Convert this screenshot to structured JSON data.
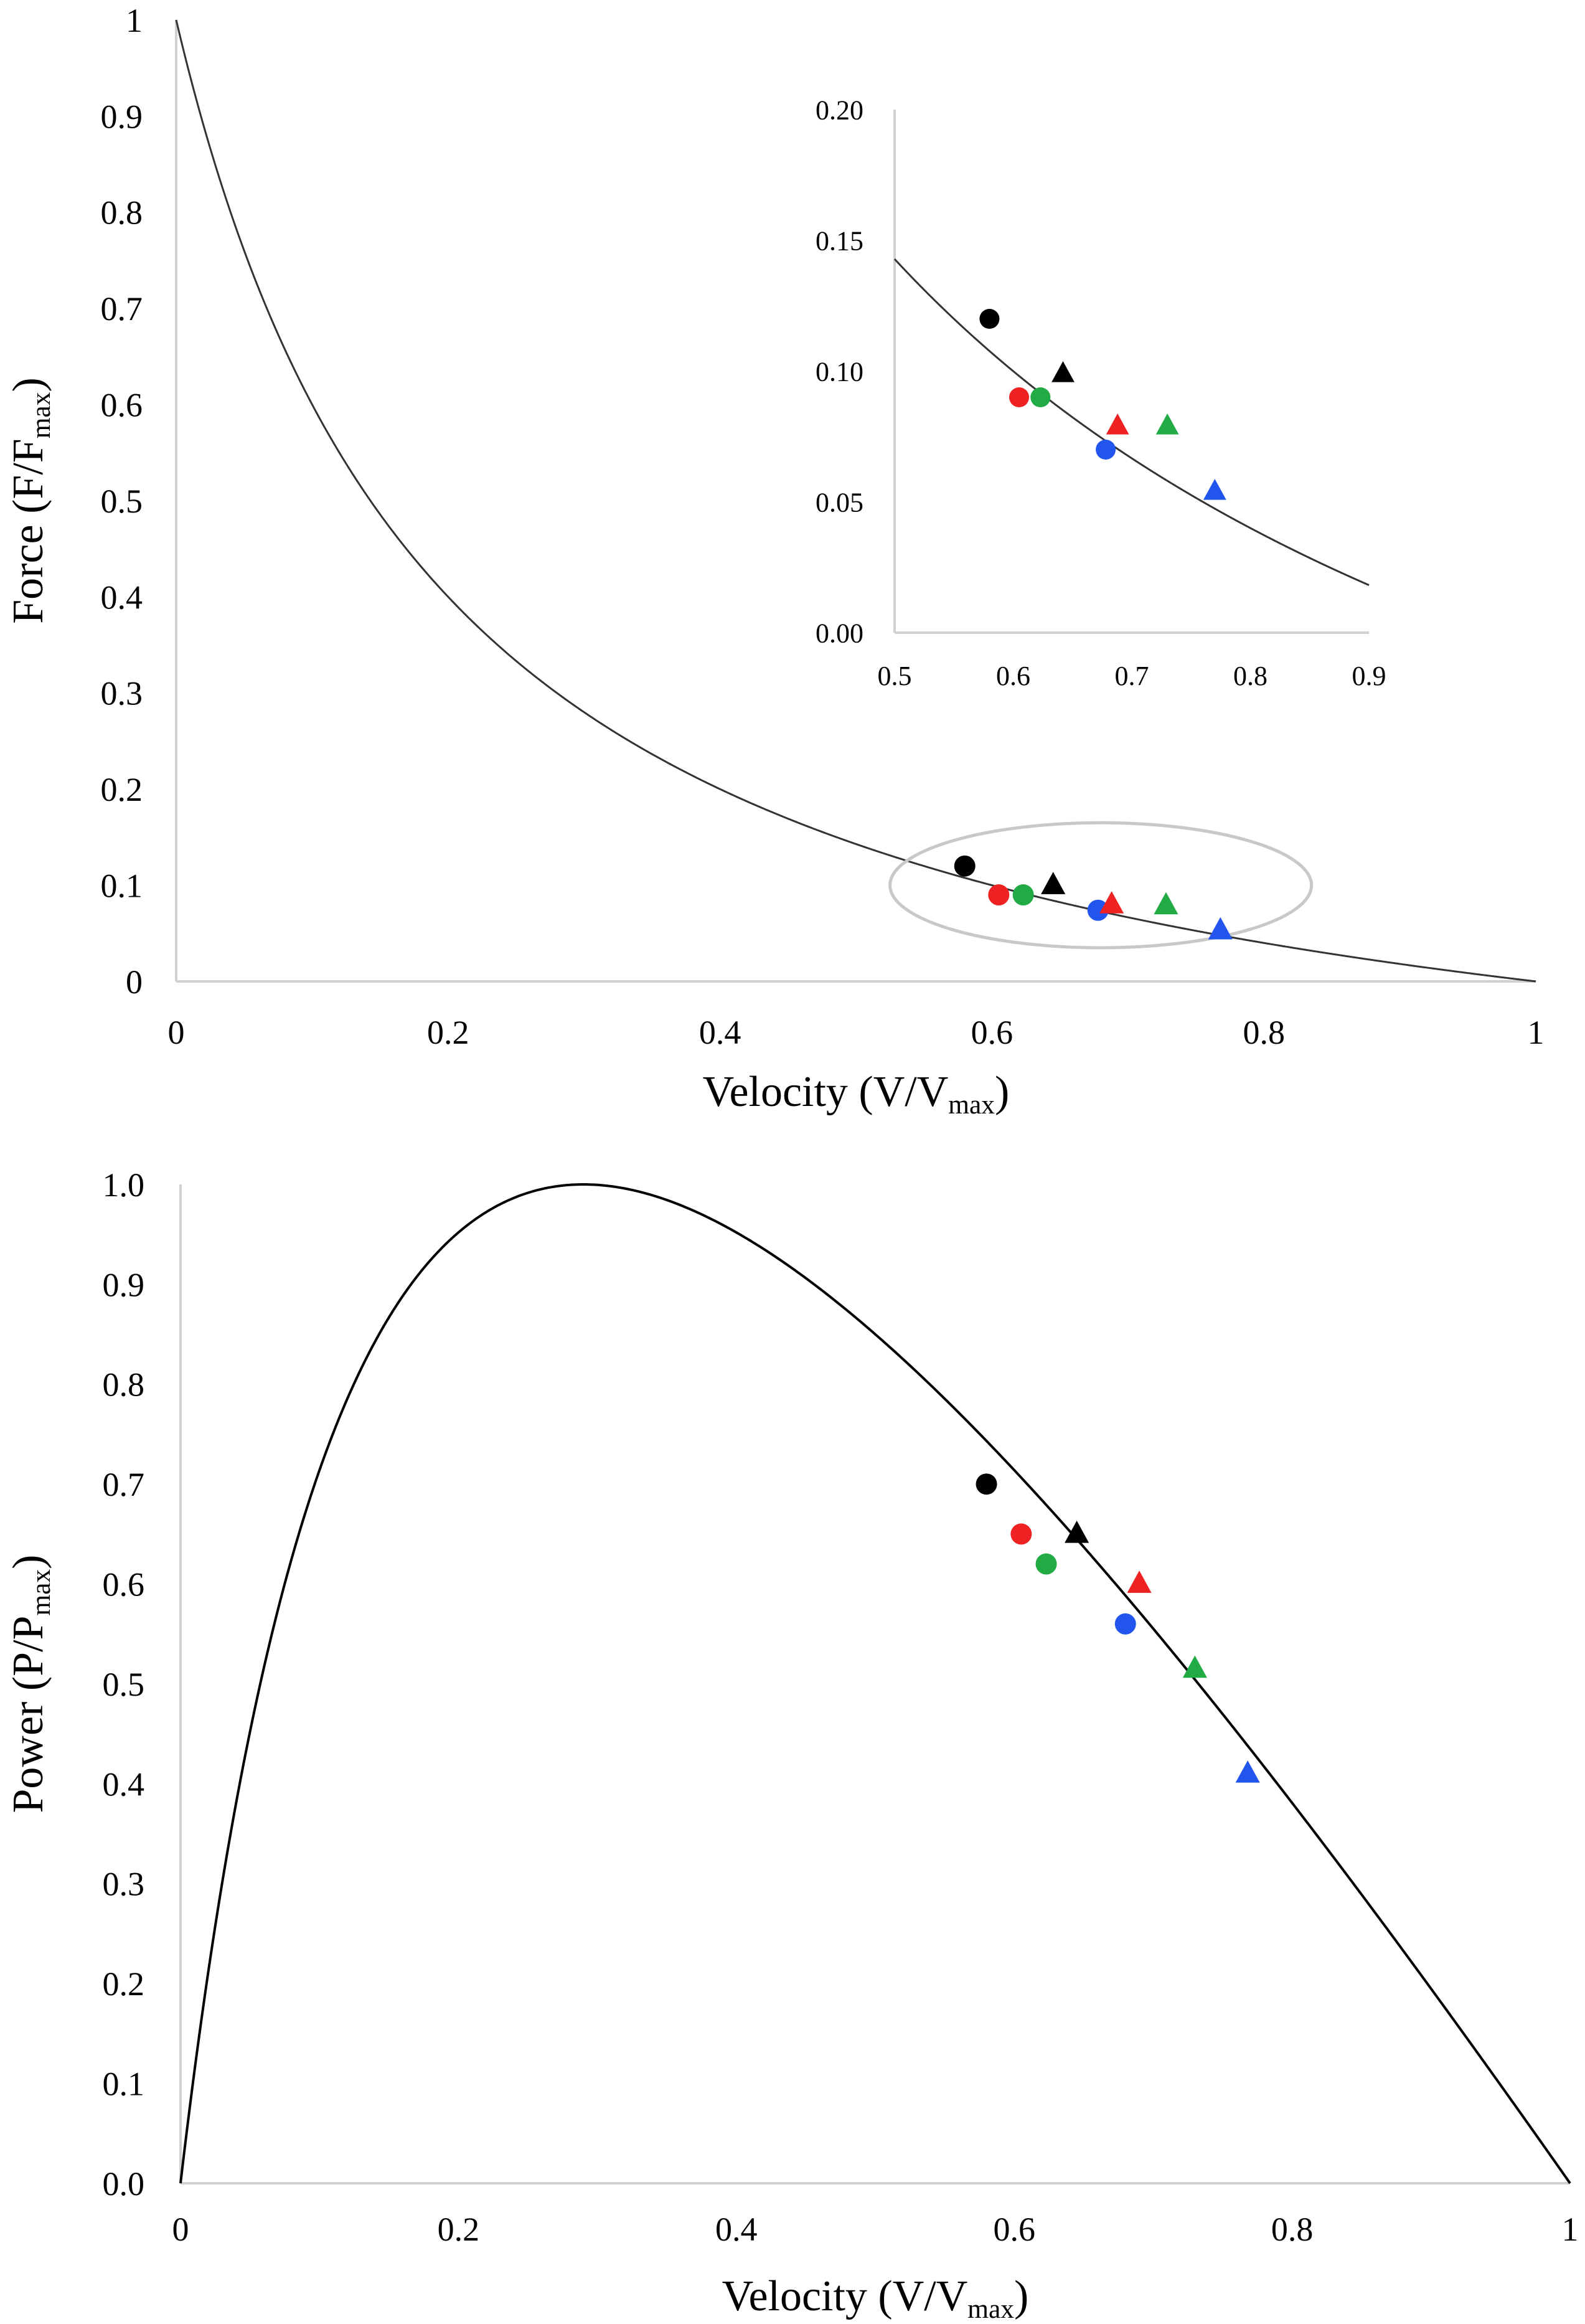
{
  "chart_data": [
    {
      "type": "line",
      "name": "force-velocity",
      "ylabel": "Force (F/F",
      "ylabel_sub": "max",
      "ylabel_close": ")",
      "xlabel": "Velocity (V/V",
      "xlabel_sub": "max",
      "xlabel_close": ")",
      "xlim": [
        0,
        1
      ],
      "ylim": [
        0,
        1
      ],
      "x_ticks": [
        "0",
        "0.2",
        "0.4",
        "0.6",
        "0.8",
        "1"
      ],
      "x_tick_values": [
        0,
        0.2,
        0.4,
        0.6,
        0.8,
        1
      ],
      "y_ticks": [
        "0",
        "0.1",
        "0.2",
        "0.3",
        "0.4",
        "0.5",
        "0.6",
        "0.7",
        "0.8",
        "0.9",
        "1"
      ],
      "y_tick_values": [
        0,
        0.1,
        0.2,
        0.3,
        0.4,
        0.5,
        0.6,
        0.7,
        0.8,
        0.9,
        1
      ],
      "curve": {
        "model": "hill",
        "a": 0.2,
        "color": "#333333"
      },
      "points": [
        {
          "x": 0.58,
          "y": 0.12,
          "color": "#000000",
          "marker": "circle"
        },
        {
          "x": 0.605,
          "y": 0.09,
          "color": "#ee2222",
          "marker": "circle"
        },
        {
          "x": 0.623,
          "y": 0.09,
          "color": "#22aa44",
          "marker": "circle"
        },
        {
          "x": 0.645,
          "y": 0.1,
          "color": "#000000",
          "marker": "triangle"
        },
        {
          "x": 0.678,
          "y": 0.074,
          "color": "#2255ee",
          "marker": "circle"
        },
        {
          "x": 0.688,
          "y": 0.08,
          "color": "#ee2222",
          "marker": "triangle"
        },
        {
          "x": 0.728,
          "y": 0.079,
          "color": "#22aa44",
          "marker": "triangle"
        },
        {
          "x": 0.768,
          "y": 0.053,
          "color": "#2255ee",
          "marker": "triangle"
        }
      ],
      "highlight_ellipse": {
        "cx": 0.68,
        "cy": 0.1,
        "rx": 0.155,
        "ry": 0.065,
        "color": "#c8c8c8"
      },
      "inset": {
        "xlim": [
          0.5,
          0.9
        ],
        "ylim": [
          0,
          0.2
        ],
        "x_ticks": [
          "0.5",
          "0.6",
          "0.7",
          "0.8",
          "0.9"
        ],
        "x_tick_values": [
          0.5,
          0.6,
          0.7,
          0.8,
          0.9
        ],
        "y_ticks": [
          "0.00",
          "0.05",
          "0.10",
          "0.15",
          "0.20"
        ],
        "y_tick_values": [
          0,
          0.05,
          0.1,
          0.15,
          0.2
        ],
        "points": [
          {
            "x": 0.58,
            "y": 0.12,
            "color": "#000000",
            "marker": "circle"
          },
          {
            "x": 0.605,
            "y": 0.09,
            "color": "#ee2222",
            "marker": "circle"
          },
          {
            "x": 0.623,
            "y": 0.09,
            "color": "#22aa44",
            "marker": "circle"
          },
          {
            "x": 0.642,
            "y": 0.099,
            "color": "#000000",
            "marker": "triangle"
          },
          {
            "x": 0.678,
            "y": 0.07,
            "color": "#2255ee",
            "marker": "circle"
          },
          {
            "x": 0.688,
            "y": 0.079,
            "color": "#ee2222",
            "marker": "triangle"
          },
          {
            "x": 0.73,
            "y": 0.079,
            "color": "#22aa44",
            "marker": "triangle"
          },
          {
            "x": 0.77,
            "y": 0.054,
            "color": "#2255ee",
            "marker": "triangle"
          }
        ]
      }
    },
    {
      "type": "line",
      "name": "power-velocity",
      "ylabel": "Power (P/P",
      "ylabel_sub": "max",
      "ylabel_close": ")",
      "xlabel": "Velocity (V/V",
      "xlabel_sub": "max",
      "xlabel_close": ")",
      "xlim": [
        0,
        1
      ],
      "ylim": [
        0,
        1
      ],
      "x_ticks": [
        "0",
        "0.2",
        "0.4",
        "0.6",
        "0.8",
        "1"
      ],
      "x_tick_values": [
        0,
        0.2,
        0.4,
        0.6,
        0.8,
        1
      ],
      "y_ticks": [
        "0.0",
        "0.1",
        "0.2",
        "0.3",
        "0.4",
        "0.5",
        "0.6",
        "0.7",
        "0.8",
        "0.9",
        "1.0"
      ],
      "y_tick_values": [
        0,
        0.1,
        0.2,
        0.3,
        0.4,
        0.5,
        0.6,
        0.7,
        0.8,
        0.9,
        1
      ],
      "curve": {
        "model": "hill-power",
        "a": 0.2,
        "color": "#000000"
      },
      "points": [
        {
          "x": 0.58,
          "y": 0.7,
          "color": "#000000",
          "marker": "circle"
        },
        {
          "x": 0.605,
          "y": 0.65,
          "color": "#ee2222",
          "marker": "circle"
        },
        {
          "x": 0.623,
          "y": 0.62,
          "color": "#22aa44",
          "marker": "circle"
        },
        {
          "x": 0.645,
          "y": 0.65,
          "color": "#000000",
          "marker": "triangle"
        },
        {
          "x": 0.68,
          "y": 0.56,
          "color": "#2255ee",
          "marker": "circle"
        },
        {
          "x": 0.69,
          "y": 0.6,
          "color": "#ee2222",
          "marker": "triangle"
        },
        {
          "x": 0.73,
          "y": 0.515,
          "color": "#22aa44",
          "marker": "triangle"
        },
        {
          "x": 0.768,
          "y": 0.41,
          "color": "#2255ee",
          "marker": "triangle"
        }
      ]
    }
  ]
}
